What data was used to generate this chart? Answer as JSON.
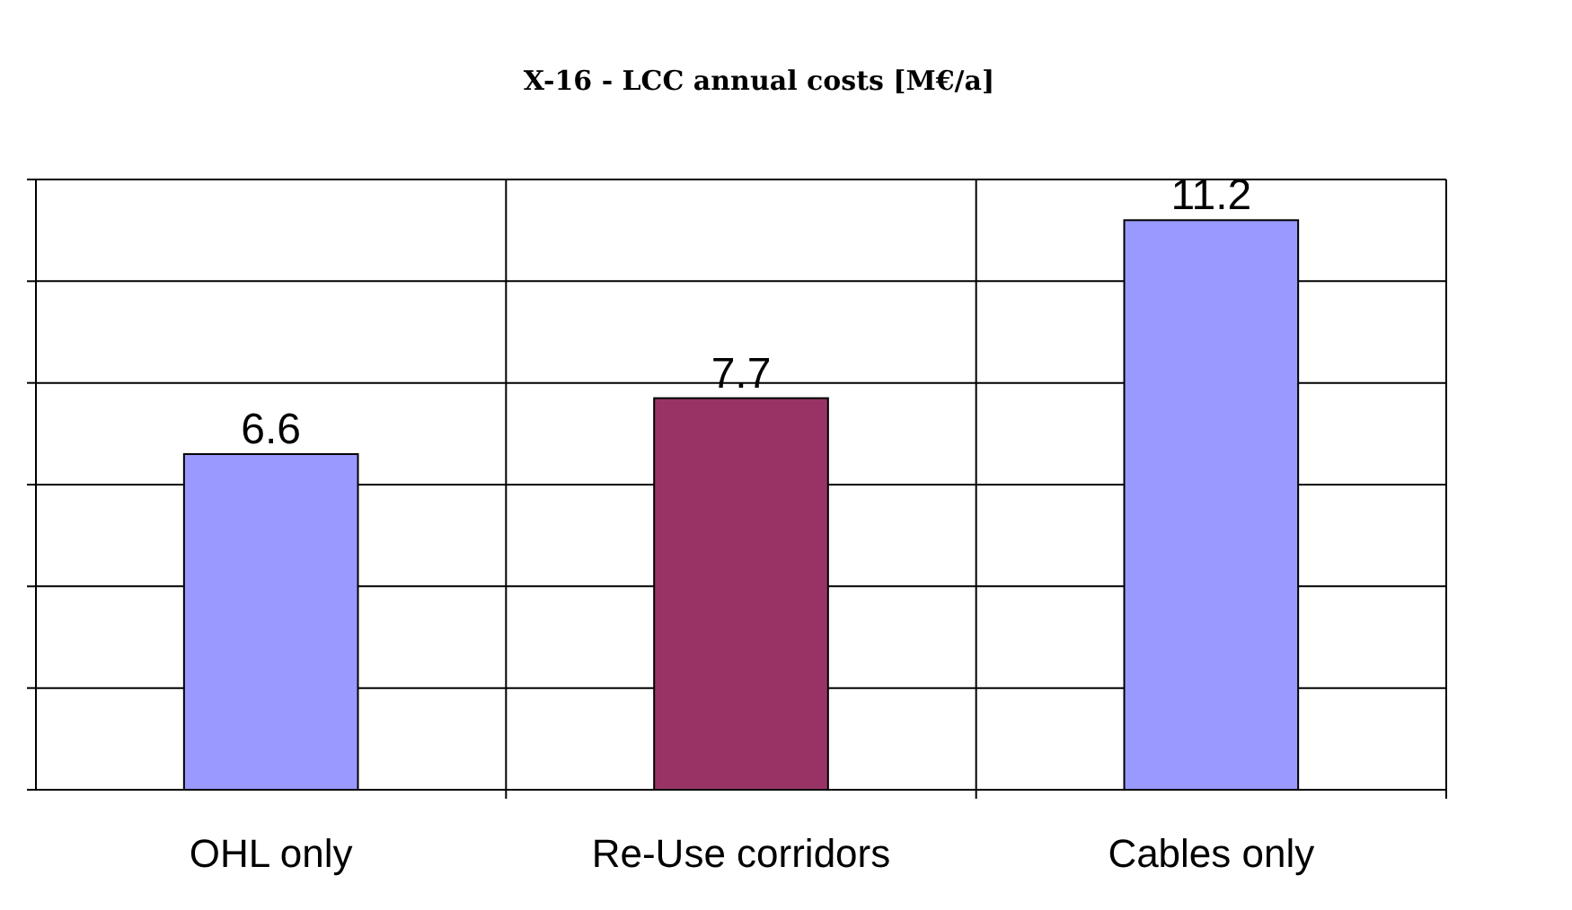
{
  "chart_data": {
    "type": "bar",
    "title": "X-16 - LCC annual costs [M€/a]",
    "categories": [
      "OHL only",
      "Re-Use corridors",
      "Cables only"
    ],
    "values": [
      6.6,
      7.7,
      11.2
    ],
    "colors": [
      "#9999ff",
      "#993366",
      "#9999ff"
    ],
    "ylim": [
      0,
      12
    ],
    "yticks": [
      {
        "value": 0,
        "label": null
      },
      {
        "value": 2,
        "label": null
      },
      {
        "value": 4,
        "label": null
      },
      {
        "value": 6,
        "label": null
      },
      {
        "value": 8,
        "label": null
      },
      {
        "value": 10,
        "label": null
      },
      {
        "value": 12,
        "label": null
      }
    ],
    "tick_labels": "x",
    "grid": true,
    "data_labels": true
  }
}
